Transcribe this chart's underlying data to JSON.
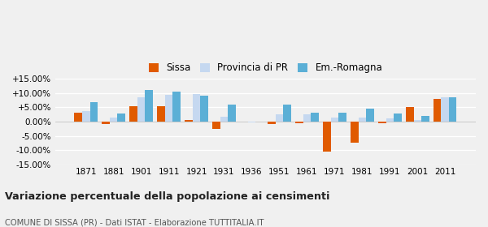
{
  "years": [
    1871,
    1881,
    1901,
    1911,
    1921,
    1931,
    1936,
    1951,
    1961,
    1971,
    1981,
    1991,
    2001,
    2011
  ],
  "sissa": [
    3.0,
    -0.8,
    5.5,
    5.5,
    0.5,
    -2.5,
    0.0,
    -0.8,
    -0.5,
    -10.5,
    -7.5,
    -0.5,
    5.0,
    8.0
  ],
  "provincia": [
    3.8,
    1.5,
    8.5,
    9.5,
    9.8,
    1.8,
    -0.2,
    2.5,
    2.5,
    1.5,
    1.5,
    1.2,
    0.5,
    8.5
  ],
  "emromagna": [
    6.8,
    2.8,
    11.2,
    10.5,
    9.2,
    6.0,
    0.0,
    6.0,
    3.2,
    3.2,
    4.6,
    2.8,
    2.0,
    8.5
  ],
  "color_sissa": "#e05a00",
  "color_provincia": "#c5d8f0",
  "color_emromagna": "#5bafd6",
  "title": "Variazione percentuale della popolazione ai censimenti",
  "subtitle": "COMUNE DI SISSA (PR) - Dati ISTAT - Elaborazione TUTTITALIA.IT",
  "ylim": [
    -15.0,
    15.0
  ],
  "yticks": [
    -15.0,
    -10.0,
    -5.0,
    0.0,
    5.0,
    10.0,
    15.0
  ],
  "legend_labels": [
    "Sissa",
    "Provincia di PR",
    "Em.-Romagna"
  ],
  "bg_color": "#f0f0f0"
}
